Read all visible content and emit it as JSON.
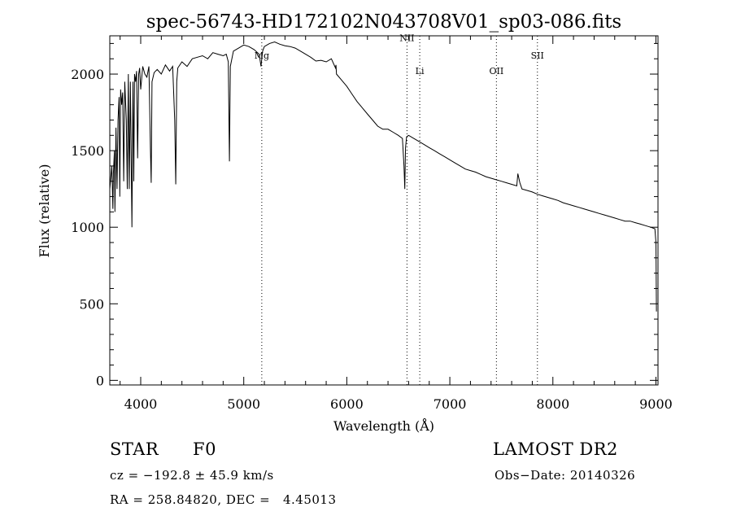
{
  "chart_data": {
    "type": "line",
    "title": "spec-56743-HD172102N043708V01_sp03-086.fits",
    "xlabel": "Wavelength (Å)",
    "ylabel": "Flux (relative)",
    "xlim": [
      3700,
      9020
    ],
    "ylim": [
      -30,
      2250
    ],
    "xticks": [
      4000,
      5000,
      6000,
      7000,
      8000,
      9000
    ],
    "yticks": [
      0,
      500,
      1000,
      1500,
      2000
    ],
    "grid": false,
    "series": [
      {
        "x": [
          3700,
          3720,
          3730,
          3735,
          3745,
          3750,
          3760,
          3770,
          3780,
          3790,
          3797,
          3805,
          3815,
          3825,
          3835,
          3845,
          3860,
          3870,
          3880,
          3889,
          3900,
          3915,
          3925,
          3933,
          3940,
          3950,
          3960,
          3970,
          3980,
          3990,
          4000,
          4020,
          4040,
          4060,
          4080,
          4095,
          4102,
          4110,
          4130,
          4160,
          4200,
          4240,
          4280,
          4310,
          4330,
          4340,
          4350,
          4360,
          4400,
          4450,
          4500,
          4550,
          4600,
          4650,
          4700,
          4750,
          4800,
          4830,
          4850,
          4861,
          4870,
          4900,
          4950,
          5000,
          5050,
          5100,
          5150,
          5167,
          5172,
          5183,
          5200,
          5250,
          5300,
          5350,
          5400,
          5450,
          5500,
          5550,
          5600,
          5650,
          5700,
          5750,
          5800,
          5850,
          5890,
          5895,
          5900,
          5950,
          6000,
          6050,
          6100,
          6150,
          6200,
          6250,
          6300,
          6350,
          6400,
          6450,
          6500,
          6540,
          6555,
          6563,
          6570,
          6580,
          6600,
          6650,
          6700,
          6750,
          6800,
          6850,
          6900,
          6950,
          7000,
          7050,
          7100,
          7150,
          7200,
          7250,
          7300,
          7350,
          7400,
          7450,
          7500,
          7550,
          7600,
          7650,
          7660,
          7680,
          7700,
          7750,
          7800,
          7850,
          7900,
          7950,
          8000,
          8050,
          8100,
          8150,
          8200,
          8250,
          8300,
          8350,
          8400,
          8450,
          8500,
          8550,
          8600,
          8650,
          8700,
          8750,
          8800,
          8850,
          8900,
          8950,
          8990,
          9000,
          9005
        ],
        "y": [
          1250,
          1400,
          1120,
          1350,
          1500,
          1100,
          1650,
          1250,
          1700,
          1850,
          1200,
          1900,
          1800,
          1880,
          1300,
          1950,
          1700,
          1250,
          2000,
          1250,
          1950,
          1000,
          1950,
          1300,
          2000,
          1950,
          2020,
          1450,
          2000,
          2040,
          1900,
          2050,
          2000,
          1980,
          2050,
          1500,
          1290,
          1950,
          2010,
          2030,
          2000,
          2060,
          2020,
          2050,
          1700,
          1280,
          1950,
          2040,
          2080,
          2050,
          2100,
          2110,
          2120,
          2100,
          2140,
          2130,
          2120,
          2130,
          2080,
          1430,
          2050,
          2150,
          2170,
          2190,
          2180,
          2160,
          2130,
          2050,
          2080,
          2150,
          2180,
          2200,
          2210,
          2195,
          2185,
          2180,
          2170,
          2150,
          2130,
          2110,
          2085,
          2090,
          2080,
          2100,
          2040,
          2060,
          2000,
          1960,
          1920,
          1870,
          1820,
          1780,
          1740,
          1700,
          1660,
          1640,
          1640,
          1620,
          1600,
          1580,
          1400,
          1250,
          1520,
          1590,
          1600,
          1580,
          1560,
          1540,
          1520,
          1500,
          1480,
          1460,
          1440,
          1420,
          1400,
          1380,
          1370,
          1360,
          1345,
          1330,
          1320,
          1310,
          1300,
          1290,
          1280,
          1270,
          1350,
          1290,
          1250,
          1240,
          1230,
          1215,
          1205,
          1195,
          1185,
          1175,
          1160,
          1150,
          1140,
          1130,
          1120,
          1110,
          1100,
          1090,
          1080,
          1070,
          1060,
          1050,
          1040,
          1040,
          1030,
          1020,
          1010,
          1000,
          990,
          900,
          450
        ]
      }
    ],
    "annotations": [
      {
        "label": "Mg",
        "x": 5175,
        "y": 2100
      },
      {
        "label": "NII",
        "x": 6584,
        "y": 2215
      },
      {
        "label": "Li",
        "x": 6708,
        "y": 2000
      },
      {
        "label": "OII",
        "x": 7452,
        "y": 2000
      },
      {
        "label": "SII",
        "x": 7850,
        "y": 2100
      }
    ]
  },
  "info": {
    "object_type": "STAR",
    "subclass": "F0",
    "survey": "LAMOST DR2",
    "cz_line": "cz = −192.8 ± 45.9 km/s",
    "obs_date_line": "Obs−Date: 20140326",
    "coord_line": "RA = 258.84820, DEC =   4.45013"
  }
}
